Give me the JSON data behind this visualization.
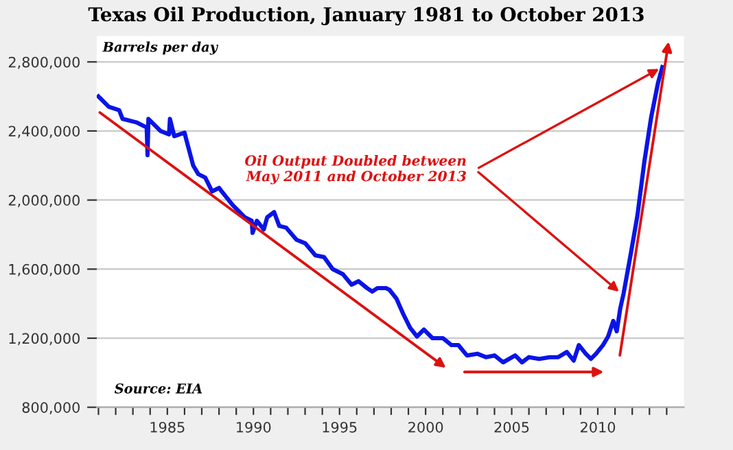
{
  "chart_data": {
    "type": "line",
    "title": "Texas Oil Production, January 1981 to October 2013",
    "ylabel": "Barrels per day",
    "annotations": [
      {
        "text": "Oil Output Doubled between\nMay 2011 and October 2013",
        "x": 2011.4,
        "y": 1455000
      },
      "Source: EIA"
    ],
    "x": [
      1981.0,
      1981.6,
      1982.2,
      1982.4,
      1983.2,
      1983.8,
      1983.85,
      1983.9,
      1984.6,
      1985.1,
      1985.15,
      1985.4,
      1986.0,
      1986.1,
      1986.5,
      1986.8,
      1987.2,
      1987.6,
      1988.0,
      1988.4,
      1988.8,
      1989.1,
      1989.5,
      1989.9,
      1989.95,
      1990.2,
      1990.6,
      1990.8,
      1991.2,
      1991.5,
      1991.9,
      1992.5,
      1993.0,
      1993.6,
      1994.1,
      1994.6,
      1995.2,
      1995.7,
      1996.1,
      1996.6,
      1996.9,
      1997.2,
      1997.7,
      1997.9,
      1998.3,
      1998.7,
      1999.1,
      1999.5,
      1999.9,
      2000.4,
      2001.0,
      2001.5,
      2001.9,
      2002.4,
      2003.0,
      2003.5,
      2004.0,
      2004.5,
      2005.2,
      2005.6,
      2006.0,
      2006.6,
      2007.2,
      2007.7,
      2008.2,
      2008.6,
      2008.9,
      2009.3,
      2009.6,
      2009.9,
      2010.3,
      2010.6,
      2010.9,
      2011.1,
      2011.3,
      2011.5,
      2011.9,
      2012.3,
      2012.7,
      2013.1,
      2013.5,
      2013.75
    ],
    "series": [
      {
        "color": "#0a14e6",
        "values": [
          2600000,
          2540000,
          2520000,
          2470000,
          2450000,
          2420000,
          2260000,
          2470000,
          2400000,
          2380000,
          2470000,
          2370000,
          2390000,
          2350000,
          2200000,
          2150000,
          2130000,
          2050000,
          2070000,
          2020000,
          1970000,
          1940000,
          1900000,
          1880000,
          1810000,
          1880000,
          1830000,
          1900000,
          1930000,
          1850000,
          1840000,
          1770000,
          1750000,
          1680000,
          1670000,
          1600000,
          1570000,
          1510000,
          1530000,
          1490000,
          1470000,
          1490000,
          1490000,
          1480000,
          1430000,
          1340000,
          1260000,
          1210000,
          1250000,
          1200000,
          1200000,
          1160000,
          1160000,
          1100000,
          1110000,
          1090000,
          1100000,
          1060000,
          1100000,
          1060000,
          1090000,
          1080000,
          1090000,
          1090000,
          1120000,
          1070000,
          1160000,
          1110000,
          1080000,
          1110000,
          1160000,
          1210000,
          1300000,
          1240000,
          1370000,
          1460000,
          1680000,
          1910000,
          2220000,
          2480000,
          2680000,
          2770000
        ]
      }
    ],
    "xlim": [
      1980.9,
      2015.0
    ],
    "xticks": [
      {
        "value": 1981,
        "label": null
      },
      {
        "value": 1982,
        "label": null
      },
      {
        "value": 1983,
        "label": null
      },
      {
        "value": 1984,
        "label": null
      },
      1985,
      {
        "value": 1986,
        "label": null
      },
      {
        "value": 1987,
        "label": null
      },
      {
        "value": 1988,
        "label": null
      },
      {
        "value": 1989,
        "label": null
      },
      1990,
      {
        "value": 1991,
        "label": null
      },
      {
        "value": 1992,
        "label": null
      },
      {
        "value": 1993,
        "label": null
      },
      {
        "value": 1994,
        "label": null
      },
      1995,
      {
        "value": 1996,
        "label": null
      },
      {
        "value": 1997,
        "label": null
      },
      {
        "value": 1998,
        "label": null
      },
      {
        "value": 1999,
        "label": null
      },
      2000,
      {
        "value": 2001,
        "label": null
      },
      {
        "value": 2002,
        "label": null
      },
      {
        "value": 2003,
        "label": null
      },
      {
        "value": 2004,
        "label": null
      },
      2005,
      {
        "value": 2006,
        "label": null
      },
      {
        "value": 2007,
        "label": null
      },
      {
        "value": 2008,
        "label": null
      },
      {
        "value": 2009,
        "label": null
      },
      2010,
      {
        "value": 2011,
        "label": null
      },
      {
        "value": 2012,
        "label": null
      },
      {
        "value": 2013,
        "label": null
      },
      {
        "value": 2014,
        "label": null
      }
    ],
    "ylim": [
      800000,
      2950000
    ],
    "yticks": [
      {
        "value": 800000,
        "label": "800,000"
      },
      {
        "value": 1200000,
        "label": "1,200,000"
      },
      {
        "value": 1600000,
        "label": "1,600,000"
      },
      {
        "value": 2000000,
        "label": "2,000,000"
      },
      {
        "value": 2400000,
        "label": "2,400,000"
      },
      {
        "value": 2800000,
        "label": "2,800,000"
      }
    ],
    "grid": "y",
    "marker": "none",
    "line_style": "solid"
  }
}
